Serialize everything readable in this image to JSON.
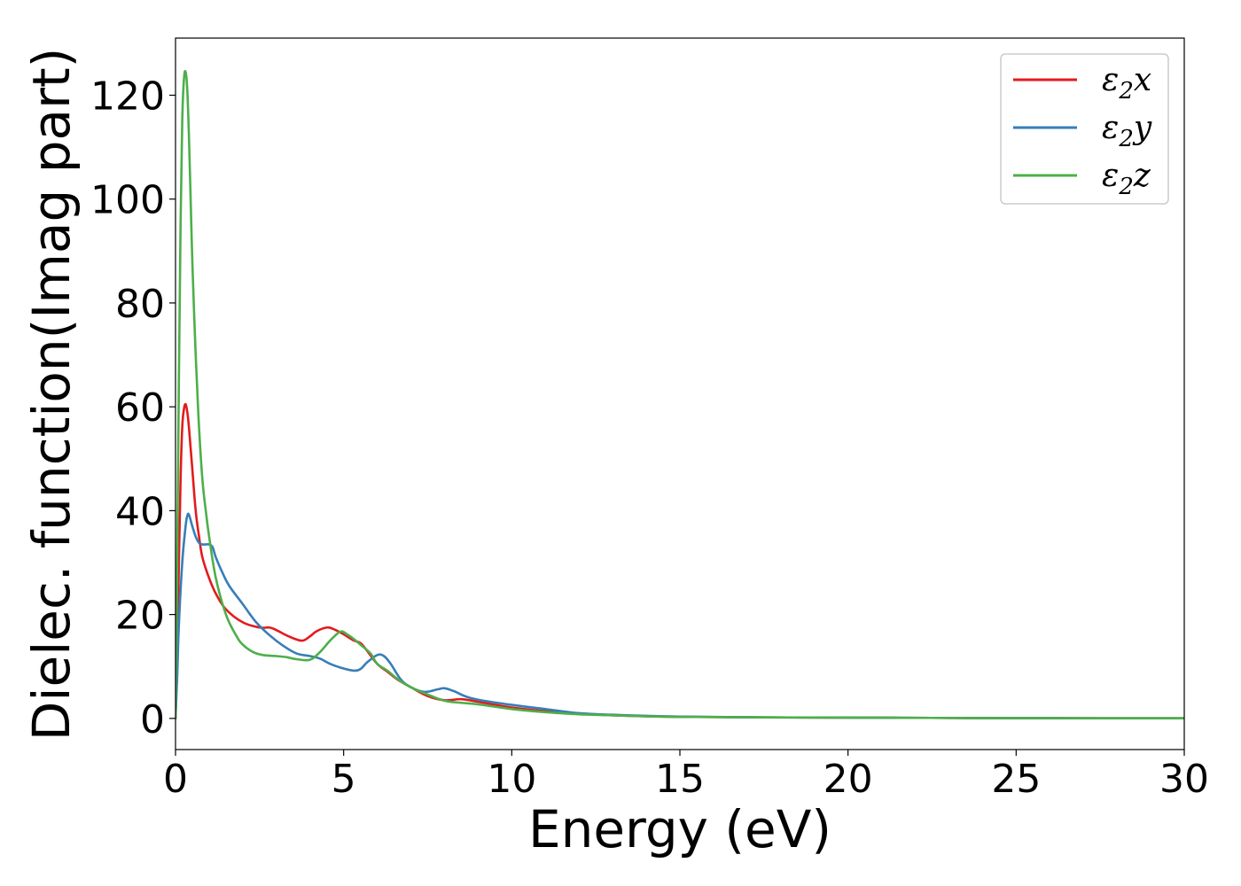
{
  "chart_data": {
    "type": "line",
    "xlabel": "Energy (eV)",
    "ylabel": "Dielec. function(Imag part)",
    "xlim": [
      0,
      30
    ],
    "ylim": [
      -6,
      131
    ],
    "xticks": [
      0,
      5,
      10,
      15,
      20,
      25,
      30
    ],
    "xtick_labels": [
      "0",
      "5",
      "10",
      "15",
      "20",
      "25",
      "30"
    ],
    "yticks": [
      0,
      20,
      40,
      60,
      80,
      100,
      120
    ],
    "ytick_labels": [
      "0",
      "20",
      "40",
      "60",
      "80",
      "100",
      "120"
    ],
    "grid": false,
    "legend_position": "top-right",
    "series": [
      {
        "name": "ε2x",
        "legend": {
          "base": "ε",
          "sub": "2",
          "suffix": "x"
        },
        "color": "#e41a1c",
        "x": [
          0,
          0.05,
          0.1,
          0.15,
          0.2,
          0.25,
          0.3,
          0.35,
          0.4,
          0.5,
          0.6,
          0.7,
          0.8,
          1.0,
          1.2,
          1.5,
          2.0,
          2.5,
          2.8,
          3.0,
          3.3,
          3.6,
          3.8,
          4.0,
          4.2,
          4.5,
          4.7,
          5.0,
          5.3,
          5.5,
          5.7,
          6.0,
          6.3,
          6.6,
          7.0,
          7.5,
          8.0,
          8.5,
          9.0,
          10.0,
          11.0,
          12.0,
          13.0,
          14.0,
          15.0,
          17.5,
          20.0,
          22.5,
          25.0,
          27.5,
          30.0
        ],
        "values": [
          0,
          12,
          30,
          46,
          56,
          59.5,
          60.5,
          59,
          56,
          48,
          40,
          35,
          31,
          27,
          24,
          21,
          18.5,
          17.5,
          17.5,
          17,
          16,
          15.2,
          15,
          15.8,
          16.8,
          17.5,
          17.2,
          16.2,
          15,
          14.5,
          13,
          10.5,
          9,
          7.5,
          6,
          4.3,
          3.5,
          3.7,
          3.2,
          2.1,
          1.4,
          0.9,
          0.6,
          0.4,
          0.3,
          0.2,
          0.15,
          0.1,
          0.05,
          0.03,
          0.02
        ]
      },
      {
        "name": "ε2y",
        "legend": {
          "base": "ε",
          "sub": "2",
          "suffix": "y"
        },
        "color": "#377eb8",
        "x": [
          0,
          0.05,
          0.1,
          0.2,
          0.3,
          0.35,
          0.4,
          0.5,
          0.6,
          0.7,
          0.8,
          0.9,
          1.0,
          1.1,
          1.2,
          1.4,
          1.6,
          2.0,
          2.4,
          2.8,
          3.2,
          3.6,
          4.0,
          4.3,
          4.6,
          5.0,
          5.3,
          5.5,
          5.7,
          6.0,
          6.2,
          6.4,
          6.7,
          7.0,
          7.4,
          7.8,
          8.0,
          8.3,
          8.6,
          9.0,
          10.0,
          11.0,
          12.0,
          13.0,
          14.0,
          15.0,
          17.5,
          20.0,
          22.5,
          25.0,
          27.5,
          30.0
        ],
        "values": [
          0,
          8,
          18,
          30,
          37,
          39,
          39.2,
          37,
          35,
          33.8,
          33.5,
          33.5,
          33.5,
          33,
          31,
          28,
          25.5,
          22,
          18.5,
          16,
          14,
          12.5,
          12,
          11.5,
          10.5,
          9.6,
          9.2,
          9.5,
          10.8,
          12.2,
          12,
          10.5,
          7.5,
          6,
          5.1,
          5.6,
          5.8,
          5.2,
          4.3,
          3.6,
          2.6,
          1.8,
          1.0,
          0.7,
          0.5,
          0.35,
          0.2,
          0.15,
          0.1,
          0.05,
          0.03,
          0.02
        ]
      },
      {
        "name": "ε2z",
        "legend": {
          "base": "ε",
          "sub": "2",
          "suffix": "z"
        },
        "color": "#4daf4a",
        "x": [
          0,
          0.05,
          0.1,
          0.15,
          0.2,
          0.25,
          0.3,
          0.35,
          0.4,
          0.45,
          0.5,
          0.6,
          0.7,
          0.8,
          0.9,
          1.0,
          1.2,
          1.5,
          1.8,
          2.0,
          2.3,
          2.6,
          3.0,
          3.3,
          3.6,
          4.0,
          4.3,
          4.6,
          4.9,
          5.1,
          5.3,
          5.5,
          5.8,
          6.0,
          6.3,
          6.6,
          7.0,
          7.5,
          8.0,
          8.5,
          9.0,
          10.0,
          11.0,
          12.0,
          13.0,
          14.0,
          15.0,
          17.5,
          20.0,
          22.5,
          25.0,
          27.5,
          30.0
        ],
        "values": [
          0,
          30,
          65,
          95,
          115,
          123,
          124.5,
          121,
          112,
          100,
          88,
          70,
          56,
          46,
          40,
          35,
          27,
          20,
          16,
          14.2,
          12.8,
          12.2,
          12,
          11.8,
          11.4,
          11.3,
          12.8,
          15,
          16.7,
          16.2,
          15.3,
          14.2,
          12.5,
          10.5,
          9.2,
          7.6,
          6,
          4.6,
          3.4,
          3.0,
          2.7,
          1.8,
          1.2,
          0.8,
          0.6,
          0.4,
          0.3,
          0.2,
          0.15,
          0.1,
          0.05,
          0.03,
          0.02
        ]
      }
    ]
  }
}
